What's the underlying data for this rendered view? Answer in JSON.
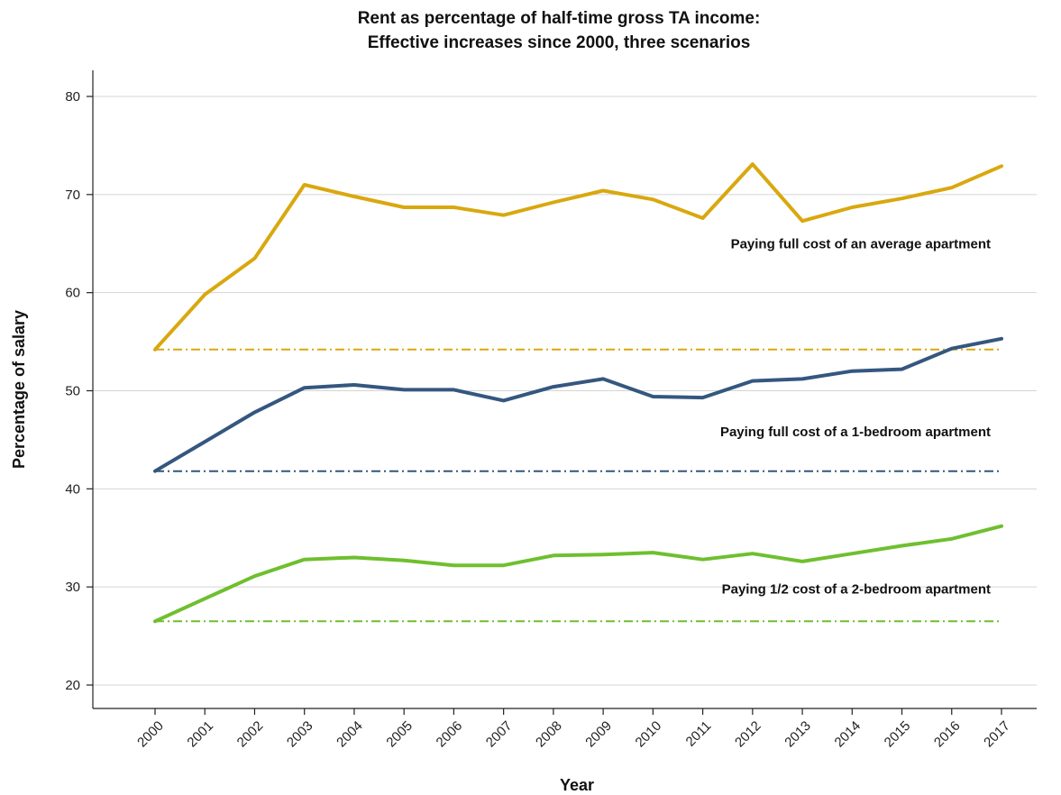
{
  "chart_data": {
    "type": "line",
    "title_line1": "Rent as percentage of half-time gross TA income:",
    "title_line2": "Effective increases since 2000, three scenarios",
    "xlabel": "Year",
    "ylabel": "Percentage of salary",
    "ylim": [
      18,
      82
    ],
    "yticks": [
      20,
      30,
      40,
      50,
      60,
      70,
      80
    ],
    "x": [
      "2000",
      "2001",
      "2002",
      "2003",
      "2004",
      "2005",
      "2006",
      "2007",
      "2008",
      "2009",
      "2010",
      "2011",
      "2012",
      "2013",
      "2014",
      "2015",
      "2016",
      "2017"
    ],
    "grid": "horizontal",
    "series": [
      {
        "key": "average",
        "color": "#D9A80F",
        "values": [
          54.2,
          59.8,
          63.5,
          71.0,
          69.8,
          68.7,
          68.7,
          67.9,
          69.2,
          70.4,
          69.5,
          67.6,
          73.1,
          67.3,
          68.7,
          69.6,
          70.7,
          72.9
        ],
        "baseline": 54.2,
        "annotation": "Paying full cost of an average apartment",
        "annotation_y": 65.0
      },
      {
        "key": "one-bedroom",
        "color": "#34577F",
        "values": [
          41.8,
          44.8,
          47.8,
          50.3,
          50.6,
          50.1,
          50.1,
          49.0,
          50.4,
          51.2,
          49.4,
          49.3,
          51.0,
          51.2,
          52.0,
          52.2,
          54.3,
          55.3
        ],
        "baseline": 41.8,
        "annotation": "Paying full cost of a 1-bedroom apartment",
        "annotation_y": 45.8
      },
      {
        "key": "two-bedroom-half",
        "color": "#6FBF2F",
        "values": [
          26.5,
          28.8,
          31.1,
          32.8,
          33.0,
          32.7,
          32.2,
          32.2,
          33.2,
          33.3,
          33.5,
          32.8,
          33.4,
          32.6,
          33.4,
          34.2,
          34.9,
          36.2
        ],
        "baseline": 26.5,
        "annotation": "Paying 1/2 cost of a 2-bedroom apartment",
        "annotation_y": 29.8
      }
    ]
  }
}
